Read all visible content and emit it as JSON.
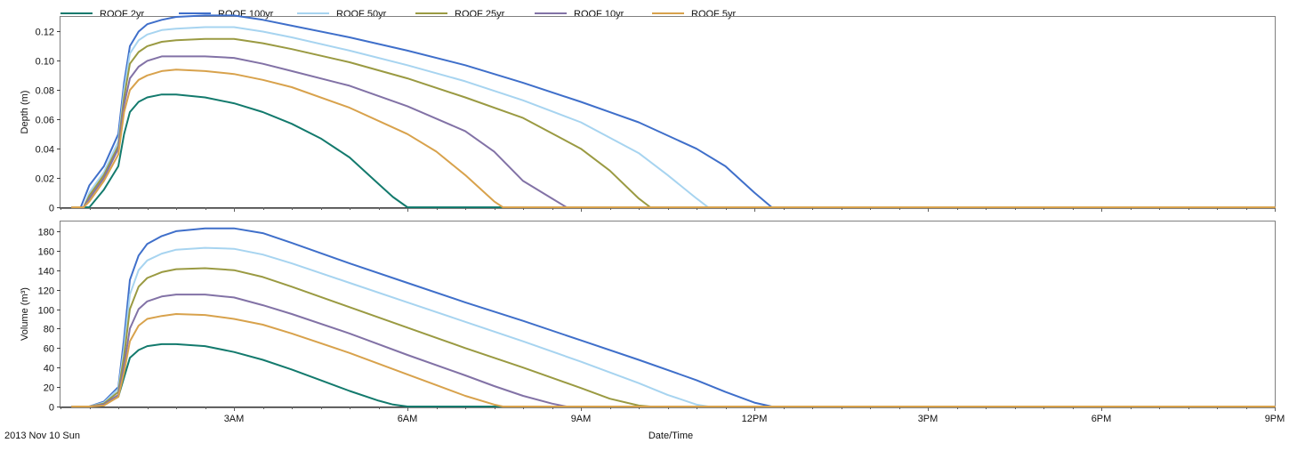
{
  "chart_data": [
    {
      "type": "line",
      "ylabel": "Depth (m)",
      "xlabel": "",
      "ylim": [
        0,
        0.13
      ],
      "yticks": [
        0,
        0.02,
        0.04,
        0.06,
        0.08,
        0.1,
        0.12
      ],
      "ytick_labels": [
        "0",
        "0.02",
        "0.04",
        "0.06",
        "0.08",
        "0.10",
        "0.12"
      ],
      "xlim": [
        0,
        21
      ],
      "grid": false,
      "x_unit": "hours since 2013 Nov 10 00:00",
      "series": [
        {
          "name": "ROOF 2yr",
          "color": "#137a6d",
          "x": [
            0.2,
            0.5,
            0.75,
            1.0,
            1.1,
            1.2,
            1.35,
            1.5,
            1.75,
            2.0,
            2.25,
            2.5,
            3.0,
            3.5,
            4.0,
            4.5,
            5.0,
            5.5,
            5.75,
            6.0,
            6.5,
            21
          ],
          "y": [
            0,
            0,
            0.012,
            0.028,
            0.05,
            0.065,
            0.072,
            0.075,
            0.077,
            0.077,
            0.076,
            0.075,
            0.071,
            0.065,
            0.057,
            0.047,
            0.034,
            0.016,
            0.007,
            0,
            0,
            0
          ]
        },
        {
          "name": "ROOF 100yr",
          "color": "#3f6fca",
          "x": [
            0.2,
            0.35,
            0.5,
            0.75,
            1.0,
            1.1,
            1.2,
            1.35,
            1.5,
            1.75,
            2.0,
            2.5,
            3.0,
            3.5,
            4.0,
            5.0,
            6.0,
            7.0,
            8.0,
            9.0,
            10.0,
            11.0,
            11.5,
            12.0,
            12.3,
            21
          ],
          "y": [
            0,
            0,
            0.015,
            0.028,
            0.05,
            0.085,
            0.11,
            0.12,
            0.125,
            0.128,
            0.13,
            0.131,
            0.131,
            0.128,
            0.124,
            0.116,
            0.107,
            0.097,
            0.085,
            0.072,
            0.058,
            0.04,
            0.028,
            0.01,
            0,
            0
          ]
        },
        {
          "name": "ROOF 50yr",
          "color": "#a7d4f0",
          "x": [
            0.2,
            0.4,
            0.5,
            0.75,
            1.0,
            1.1,
            1.2,
            1.35,
            1.5,
            1.75,
            2.0,
            2.5,
            3.0,
            3.5,
            4.0,
            5.0,
            6.0,
            7.0,
            8.0,
            9.0,
            10.0,
            10.5,
            11.0,
            11.2,
            21
          ],
          "y": [
            0,
            0,
            0.01,
            0.024,
            0.045,
            0.08,
            0.105,
            0.114,
            0.118,
            0.121,
            0.122,
            0.123,
            0.123,
            0.12,
            0.116,
            0.107,
            0.097,
            0.086,
            0.073,
            0.058,
            0.037,
            0.022,
            0.006,
            0,
            0
          ]
        },
        {
          "name": "ROOF 25yr",
          "color": "#9a9a42",
          "x": [
            0.2,
            0.4,
            0.5,
            0.75,
            1.0,
            1.1,
            1.2,
            1.35,
            1.5,
            1.75,
            2.0,
            2.5,
            3.0,
            3.5,
            4.0,
            5.0,
            6.0,
            7.0,
            8.0,
            9.0,
            9.5,
            10.0,
            10.2,
            21
          ],
          "y": [
            0,
            0,
            0.008,
            0.022,
            0.042,
            0.075,
            0.098,
            0.106,
            0.11,
            0.113,
            0.114,
            0.115,
            0.115,
            0.112,
            0.108,
            0.099,
            0.088,
            0.075,
            0.061,
            0.04,
            0.025,
            0.006,
            0,
            0
          ]
        },
        {
          "name": "ROOF 10yr",
          "color": "#8272a6",
          "x": [
            0.2,
            0.4,
            0.5,
            0.75,
            1.0,
            1.1,
            1.2,
            1.35,
            1.5,
            1.75,
            2.0,
            2.5,
            3.0,
            3.5,
            4.0,
            5.0,
            6.0,
            7.0,
            7.5,
            8.0,
            8.5,
            8.75,
            21
          ],
          "y": [
            0,
            0,
            0.006,
            0.02,
            0.04,
            0.07,
            0.088,
            0.096,
            0.1,
            0.103,
            0.103,
            0.103,
            0.102,
            0.098,
            0.093,
            0.083,
            0.069,
            0.052,
            0.038,
            0.018,
            0.006,
            0,
            0
          ]
        },
        {
          "name": "ROOF 5yr",
          "color": "#d8a24c",
          "x": [
            0.2,
            0.4,
            0.5,
            0.75,
            1.0,
            1.1,
            1.2,
            1.35,
            1.5,
            1.75,
            2.0,
            2.5,
            3.0,
            3.5,
            4.0,
            5.0,
            6.0,
            6.5,
            7.0,
            7.5,
            7.65,
            21
          ],
          "y": [
            0,
            0,
            0.004,
            0.018,
            0.036,
            0.065,
            0.08,
            0.087,
            0.09,
            0.093,
            0.094,
            0.093,
            0.091,
            0.087,
            0.082,
            0.068,
            0.05,
            0.038,
            0.022,
            0.004,
            0,
            0
          ]
        }
      ]
    },
    {
      "type": "line",
      "ylabel": "Volume (m³)",
      "xlabel": "Date/Time",
      "ylim": [
        0,
        190
      ],
      "yticks": [
        0,
        20,
        40,
        60,
        80,
        100,
        120,
        140,
        160,
        180
      ],
      "ytick_labels": [
        "0",
        "20",
        "40",
        "60",
        "80",
        "100",
        "120",
        "140",
        "160",
        "180"
      ],
      "xlim": [
        0,
        21
      ],
      "xticks": [
        3,
        6,
        9,
        12,
        15,
        18,
        21
      ],
      "xtick_labels": [
        "3AM",
        "6AM",
        "9AM",
        "12PM",
        "3PM",
        "6PM",
        "9PM"
      ],
      "date_label": "2013 Nov 10 Sun",
      "grid": false,
      "x_unit": "hours since 2013 Nov 10 00:00",
      "series": [
        {
          "name": "ROOF 2yr",
          "color": "#137a6d",
          "x": [
            0.2,
            0.5,
            0.75,
            1.0,
            1.1,
            1.2,
            1.35,
            1.5,
            1.75,
            2.0,
            2.5,
            3.0,
            3.5,
            4.0,
            4.5,
            5.0,
            5.5,
            5.75,
            6.0,
            21
          ],
          "y": [
            0,
            0,
            3,
            10,
            30,
            50,
            58,
            62,
            64,
            64,
            62,
            56,
            48,
            38,
            27,
            16,
            6,
            2,
            0,
            0
          ]
        },
        {
          "name": "ROOF 100yr",
          "color": "#3f6fca",
          "x": [
            0.2,
            0.5,
            0.75,
            1.0,
            1.1,
            1.2,
            1.35,
            1.5,
            1.75,
            2.0,
            2.5,
            3.0,
            3.5,
            4.0,
            5.0,
            6.0,
            7.0,
            8.0,
            9.0,
            10.0,
            11.0,
            11.5,
            12.0,
            12.3,
            21
          ],
          "y": [
            0,
            0,
            5,
            20,
            70,
            130,
            155,
            167,
            175,
            180,
            183,
            183,
            178,
            168,
            147,
            127,
            107,
            88,
            68,
            48,
            27,
            15,
            4,
            0,
            0
          ]
        },
        {
          "name": "ROOF 50yr",
          "color": "#a7d4f0",
          "x": [
            0.2,
            0.5,
            0.75,
            1.0,
            1.1,
            1.2,
            1.35,
            1.5,
            1.75,
            2.0,
            2.5,
            3.0,
            3.5,
            4.0,
            5.0,
            6.0,
            7.0,
            8.0,
            9.0,
            10.0,
            10.5,
            11.0,
            11.2,
            21
          ],
          "y": [
            0,
            0,
            4,
            18,
            60,
            115,
            140,
            150,
            157,
            161,
            163,
            162,
            156,
            147,
            127,
            107,
            87,
            67,
            46,
            24,
            12,
            2,
            0,
            0
          ]
        },
        {
          "name": "ROOF 25yr",
          "color": "#9a9a42",
          "x": [
            0.2,
            0.5,
            0.75,
            1.0,
            1.1,
            1.2,
            1.35,
            1.5,
            1.75,
            2.0,
            2.5,
            3.0,
            3.5,
            4.0,
            5.0,
            6.0,
            7.0,
            8.0,
            9.0,
            9.5,
            10.0,
            10.2,
            21
          ],
          "y": [
            0,
            0,
            3,
            15,
            52,
            100,
            123,
            132,
            138,
            141,
            142,
            140,
            133,
            123,
            102,
            81,
            60,
            40,
            19,
            8,
            1,
            0,
            0
          ]
        },
        {
          "name": "ROOF 10yr",
          "color": "#8272a6",
          "x": [
            0.2,
            0.5,
            0.75,
            1.0,
            1.1,
            1.2,
            1.35,
            1.5,
            1.75,
            2.0,
            2.5,
            3.0,
            3.5,
            4.0,
            5.0,
            6.0,
            7.0,
            7.5,
            8.0,
            8.5,
            8.75,
            21
          ],
          "y": [
            0,
            0,
            2,
            12,
            42,
            80,
            100,
            108,
            113,
            115,
            115,
            112,
            104,
            95,
            75,
            53,
            32,
            21,
            11,
            3,
            0,
            0
          ]
        },
        {
          "name": "ROOF 5yr",
          "color": "#d8a24c",
          "x": [
            0.2,
            0.5,
            0.75,
            1.0,
            1.1,
            1.2,
            1.35,
            1.5,
            1.75,
            2.0,
            2.5,
            3.0,
            3.5,
            4.0,
            5.0,
            6.0,
            6.5,
            7.0,
            7.5,
            7.65,
            21
          ],
          "y": [
            0,
            0,
            1,
            10,
            35,
            67,
            83,
            90,
            93,
            95,
            94,
            90,
            84,
            75,
            55,
            33,
            22,
            11,
            2,
            0,
            0
          ]
        }
      ]
    }
  ]
}
